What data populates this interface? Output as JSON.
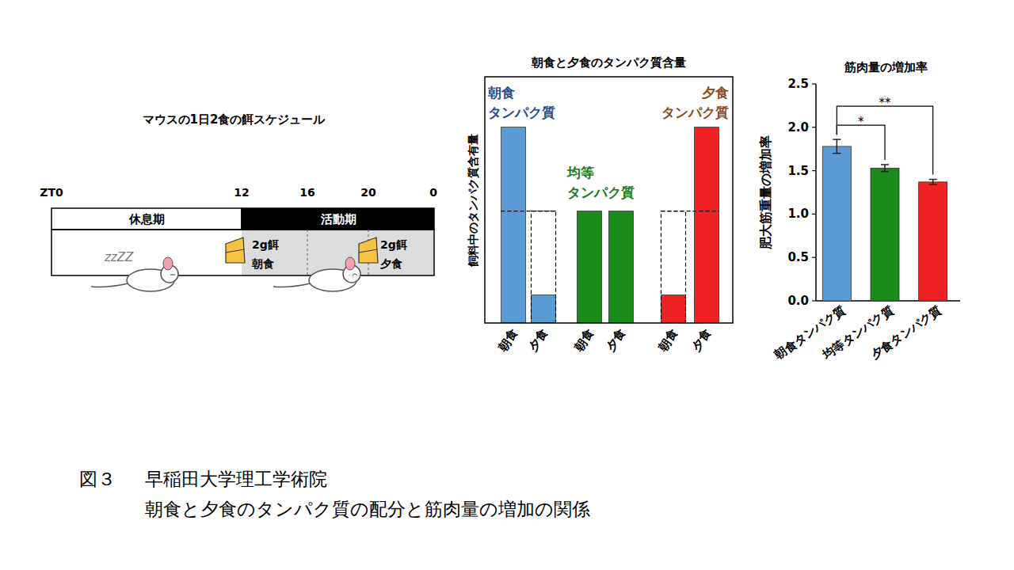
{
  "chart_data": [
    {
      "type": "bar",
      "title": "朝食と夕食のタンパク質含量",
      "y_label": "飼料中のタンパク質含有量",
      "categories": [
        "朝食",
        "夕食",
        "朝食",
        "夕食",
        "朝食",
        "夕食"
      ],
      "values": [
        1.75,
        0.25,
        1,
        1,
        0.25,
        1.75
      ],
      "colors": [
        "#5b9bd5",
        "#5b9bd5",
        "#1a8a1a",
        "#1a8a1a",
        "#ee2222",
        "#ee2222"
      ],
      "ylim": [
        0,
        2.2
      ],
      "tick_labels": "x",
      "reference_line": 1,
      "group_labels": [
        [
          "朝食",
          "タンパク質"
        ],
        [
          "均等",
          "タンパク質"
        ],
        [
          "夕食",
          "タンパク質"
        ]
      ]
    },
    {
      "type": "bar",
      "title": "筋肉量の増加率",
      "y_label": "肥大筋重量の増加率",
      "categories": [
        "朝食タンパク質",
        "均等タンパク質",
        "夕食タンパク質"
      ],
      "values": [
        1.78,
        1.53,
        1.37
      ],
      "errors": [
        0.08,
        0.04,
        0.03
      ],
      "colors": [
        "#5b9bd5",
        "#1a8a1a",
        "#ee2222"
      ],
      "ylim": [
        0,
        2.5
      ],
      "yticks": [
        {
          "value": 0,
          "label": "0.0"
        },
        {
          "value": 0.5,
          "label": "0.5"
        },
        {
          "value": 1,
          "label": "1.0"
        },
        {
          "value": 1.5,
          "label": "1.5"
        },
        {
          "value": 2,
          "label": "2.0"
        },
        {
          "value": 2.5,
          "label": "2.5"
        }
      ],
      "significance": [
        {
          "pair": [
            0,
            1
          ],
          "label": "*"
        },
        {
          "pair": [
            0,
            2
          ],
          "label": "**"
        }
      ]
    }
  ],
  "schedule": {
    "title": "マウスの1日2食の餌スケジュール",
    "time_labels": [
      "ZT0",
      "12",
      "16",
      "20",
      "0"
    ],
    "periods": [
      "休息期",
      "活動期"
    ],
    "sleep": "zzZZ",
    "meals": [
      {
        "amount": "2g餌",
        "name": "朝食"
      },
      {
        "amount": "2g餌",
        "name": "夕食"
      }
    ]
  },
  "caption": {
    "figure_label": "図３",
    "source": "早稲田大学理工学術院",
    "text": "朝食と夕食のタンパク質の配分と筋肉量の増加の関係"
  }
}
